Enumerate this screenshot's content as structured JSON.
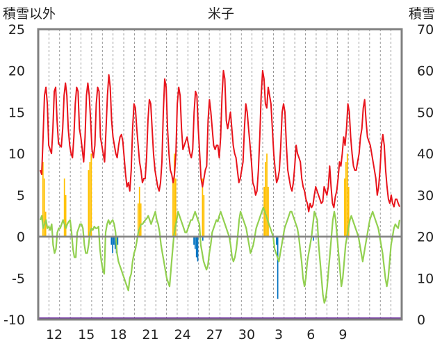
{
  "title": "米子",
  "left_axis_title": "積雪以外",
  "right_axis_title": "積雪",
  "chart_data": {
    "type": "line",
    "title": "米子",
    "x_tick_labels": [
      "12",
      "15",
      "18",
      "21",
      "24",
      "27",
      "30",
      "3",
      "6",
      "9"
    ],
    "y_left": {
      "label": "積雪以外",
      "ylim": [
        -10,
        25
      ],
      "ticks": [
        -10,
        -5,
        0,
        5,
        10,
        15,
        20,
        25
      ]
    },
    "y_right": {
      "label": "積雪",
      "ylim": [
        0,
        70
      ],
      "ticks": [
        0,
        10,
        20,
        30,
        40,
        50,
        60,
        70
      ]
    },
    "grid": {
      "vertical": "dashed",
      "horizontal": false
    },
    "colors": {
      "red": "#e8141c",
      "green": "#92d050",
      "orange": "#ffc000",
      "blue": "#0070c0",
      "purple": "#7030a0",
      "frame": "#808080",
      "zero": "#808080"
    },
    "n_days": 34,
    "series": [
      {
        "axis": "left",
        "color": "red",
        "values": [
          8,
          7.5,
          12,
          17,
          18,
          16,
          11,
          10.5,
          10,
          13,
          17.5,
          18,
          14,
          11.2,
          11,
          10.8,
          13,
          17,
          18.5,
          17,
          13,
          11,
          10,
          9.5,
          12,
          16,
          18,
          17.5,
          13,
          12,
          10.5,
          9,
          12,
          17,
          18.5,
          17,
          14,
          10.5,
          9.5,
          11,
          16,
          18,
          17.5,
          12,
          11,
          10,
          9,
          13,
          17,
          19.5,
          18,
          14,
          12,
          11,
          10,
          9.5,
          11,
          12,
          12.3,
          11.5,
          9.5,
          7.5,
          6,
          6.5,
          5.5,
          8,
          13,
          16,
          15.5,
          13,
          11,
          9,
          8,
          6.5,
          7,
          7,
          9.5,
          14,
          16.5,
          16,
          13,
          10,
          8,
          7,
          6,
          5.5,
          6.5,
          9,
          15,
          19,
          18,
          13,
          10,
          8,
          7.5,
          6.5,
          7.5,
          10,
          16,
          18,
          17,
          13,
          10.5,
          11,
          11.5,
          12,
          11,
          10,
          9.5,
          10.5,
          15,
          17.5,
          17,
          13,
          10,
          7,
          6,
          7,
          8,
          8.5,
          14,
          16.5,
          15,
          13,
          11,
          10.5,
          11,
          11,
          9.5,
          12,
          17,
          20,
          19,
          14,
          13,
          14,
          15,
          13,
          11,
          10,
          9.5,
          8,
          6.5,
          7,
          8,
          9,
          13,
          16,
          15,
          13,
          11,
          9,
          6.5,
          6,
          5,
          5.5,
          8,
          12,
          17,
          20,
          19,
          16,
          15.5,
          18,
          17,
          16,
          13,
          10,
          8,
          6.5,
          7,
          8,
          11,
          15,
          16,
          15,
          11,
          8,
          7,
          6,
          5.5,
          6.5,
          8.5,
          11,
          10,
          9.5,
          9,
          7,
          6,
          5.5,
          4.5,
          4,
          3,
          4,
          3.5,
          3.8,
          5,
          6,
          5.5,
          5,
          4.5,
          4,
          4.2,
          6,
          5.5,
          5,
          6,
          8.5,
          6,
          4,
          3.5,
          4.8,
          5.5,
          7,
          9,
          8.5,
          10,
          12,
          11,
          13,
          16,
          15,
          12,
          10,
          8.5,
          8,
          8,
          9,
          10,
          12,
          13,
          15.5,
          16.5,
          14,
          12,
          11.5,
          11,
          10,
          9,
          8,
          7,
          5,
          6,
          8,
          11,
          12.3,
          11,
          8,
          6,
          4.5,
          4,
          5,
          4,
          3.6,
          4.5,
          4.5,
          4,
          3.6
        ]
      },
      {
        "axis": "left",
        "color": "green",
        "values": [
          2,
          2.5,
          1,
          1.5,
          2,
          1,
          1.2,
          0.8,
          1.5,
          -1,
          -2,
          -1.5,
          0.5,
          1,
          1,
          1.5,
          2,
          1.5,
          1,
          1.5,
          1.8,
          2,
          0.5,
          -1.5,
          -2.5,
          -2.5,
          0.5,
          1,
          1.5,
          1.5,
          1,
          -1,
          -2,
          -2,
          -1,
          0.5,
          1,
          0.8,
          1.2,
          1,
          1,
          1.2,
          -1.5,
          -3,
          -4,
          -4.5,
          0.5,
          1.5,
          2,
          1.5,
          1.8,
          2,
          1.5,
          0.5,
          -2,
          -3,
          -3.5,
          -4,
          -4.5,
          -5,
          -5.5,
          -6,
          -6.5,
          -5,
          -4.5,
          -3,
          -2,
          -1.5,
          -0.5,
          0.5,
          1,
          1.5,
          1.5,
          1.8,
          2,
          2.2,
          2.5,
          2,
          1.5,
          2,
          2.5,
          3,
          2,
          1.5,
          0.5,
          -1,
          -2,
          -3,
          -4,
          -5,
          -5.5,
          -6,
          -4,
          -2,
          0,
          1,
          2,
          3,
          2.5,
          2,
          1.5,
          1,
          0.5,
          0.5,
          1,
          1.5,
          2,
          2,
          2.5,
          3,
          2.5,
          2,
          1.5,
          -1,
          -2,
          -3,
          -3.5,
          -4,
          -3.5,
          -2,
          -1,
          0.5,
          1,
          1.5,
          2,
          1.8,
          2.5,
          3,
          2.5,
          2,
          1.5,
          1,
          0.5,
          0,
          -1,
          -2.5,
          -3,
          -2.5,
          -1.5,
          0,
          2,
          3,
          2.5,
          2,
          1.5,
          1,
          0,
          -1,
          -2,
          -1.5,
          -1,
          0,
          1,
          1.5,
          2,
          2.5,
          3,
          3.5,
          3,
          2.5,
          2,
          1.5,
          1,
          0.5,
          0,
          -1.5,
          -2,
          -2.5,
          -3,
          -2,
          -1,
          0,
          1,
          1.5,
          2,
          2.5,
          3,
          3,
          2.5,
          2,
          1.5,
          1,
          0,
          -1.5,
          -3,
          -5,
          -6,
          -5,
          -3,
          -2,
          -1,
          0,
          1.5,
          3,
          2.5,
          2,
          -1,
          -3,
          -5,
          -7,
          -8,
          -7.5,
          -6,
          -4,
          -2,
          0,
          2,
          3,
          2,
          0,
          -2,
          -4,
          -6,
          -5,
          -3,
          -1,
          0,
          1,
          2,
          2.5,
          2,
          1.5,
          1,
          0.5,
          0,
          -1,
          -2,
          -3,
          -2,
          -1,
          0,
          1,
          2,
          2.5,
          3,
          2.5,
          2,
          1.5,
          1,
          0,
          -1,
          -2,
          -3.5,
          -5,
          -6,
          -5,
          -3,
          -1,
          0,
          1,
          1.5,
          1.2,
          1,
          2
        ]
      },
      {
        "axis": "left",
        "color": "orange",
        "style": "bars",
        "values": [
          0,
          0,
          9,
          7,
          3,
          0,
          0,
          0,
          0,
          0,
          0,
          0,
          0,
          0,
          0,
          0,
          0,
          0,
          7,
          5,
          0,
          0,
          0,
          0,
          0,
          0,
          0,
          0,
          0,
          0,
          0,
          0,
          0,
          0,
          0,
          0,
          8,
          9,
          10,
          0,
          0,
          0,
          0,
          0,
          0,
          0,
          0,
          0,
          0,
          0,
          0,
          0,
          0,
          0,
          0,
          0,
          0,
          0,
          0,
          0,
          0,
          0,
          0,
          0,
          0,
          0,
          0,
          0,
          0,
          0,
          0,
          0,
          0,
          4,
          6,
          4,
          0,
          0,
          0,
          0,
          0,
          0,
          0,
          0,
          0,
          0,
          0,
          0,
          0,
          0,
          0,
          0,
          0,
          0,
          0,
          0,
          0,
          0,
          0,
          7,
          10,
          7,
          0,
          0,
          0,
          0,
          0,
          0,
          0,
          0,
          0,
          0,
          0,
          0,
          0,
          0,
          0,
          0,
          0,
          0,
          0,
          7,
          5,
          0,
          0,
          0,
          0,
          0,
          0,
          0,
          0,
          0,
          0,
          0,
          0,
          0,
          0,
          0,
          0,
          0,
          0,
          0,
          0,
          0,
          0,
          0,
          0,
          0,
          0,
          0,
          0,
          0,
          0,
          0,
          0,
          0,
          0,
          0,
          0,
          0,
          0,
          0,
          0,
          0,
          0,
          0,
          0,
          6,
          9,
          10,
          6,
          0,
          0,
          0,
          0,
          0,
          0,
          0,
          0,
          0,
          0,
          0,
          0,
          0,
          0,
          0,
          0,
          0,
          0,
          0,
          0,
          0,
          0,
          0,
          0,
          0,
          0,
          0,
          0,
          0,
          0,
          0,
          0,
          0,
          0,
          0,
          0,
          0,
          0,
          0,
          0,
          0,
          0,
          0,
          0,
          0,
          0,
          0,
          0,
          0,
          0,
          0,
          0,
          0,
          0,
          0,
          0,
          7,
          9,
          10,
          6,
          0,
          0,
          0,
          0,
          0,
          0,
          0,
          0,
          0,
          0,
          0,
          0,
          0,
          0,
          0,
          0,
          0,
          0,
          0,
          0,
          0,
          0,
          0,
          0,
          0,
          0,
          0,
          0,
          0,
          0,
          0,
          0,
          0,
          0,
          0,
          0,
          0,
          0
        ]
      },
      {
        "axis": "left",
        "color": "blue",
        "style": "bars",
        "values": [
          0,
          0,
          0,
          0,
          0,
          0,
          0,
          0,
          0,
          0,
          0,
          0,
          0,
          0,
          0,
          0,
          0,
          0,
          0,
          0,
          0,
          0,
          0,
          0,
          0,
          0,
          0,
          0,
          0,
          0,
          0,
          0,
          0,
          0,
          0,
          0,
          0,
          0,
          0,
          0,
          0,
          0,
          0,
          0,
          0,
          0,
          0,
          0,
          0,
          0,
          0,
          0,
          0,
          0,
          0,
          0,
          -1,
          -2,
          -1,
          -1.5,
          -2,
          -1,
          0,
          0,
          0,
          0,
          0,
          0,
          0,
          0,
          0,
          0,
          0,
          0,
          0,
          0,
          0,
          0,
          0,
          0,
          0,
          0,
          0,
          0,
          0,
          0,
          0,
          0,
          0,
          0,
          0,
          0,
          0,
          0,
          0,
          0,
          0,
          0,
          0,
          0,
          0,
          0,
          0,
          0,
          0,
          0,
          0,
          0,
          0,
          0,
          0,
          0,
          0,
          0,
          0,
          0,
          0,
          0,
          0,
          0,
          0,
          -1,
          -1.5,
          -2.5,
          -3,
          0,
          0,
          0,
          -0.5,
          0,
          0,
          0,
          0,
          0,
          0,
          0,
          0,
          0,
          0,
          0,
          0,
          0,
          0,
          0,
          0,
          0,
          0,
          0,
          0,
          0,
          0,
          0,
          0,
          0,
          0,
          0,
          0,
          0,
          0,
          0,
          0,
          0,
          0,
          0,
          0,
          0,
          0,
          0,
          0,
          0,
          0,
          0,
          0,
          0,
          0,
          0,
          0,
          0,
          0,
          0,
          0,
          0,
          0,
          0,
          0,
          0,
          -1,
          -7.5,
          0,
          0,
          0,
          0,
          0,
          0,
          0,
          0,
          0,
          0,
          0,
          0,
          0,
          0,
          0,
          0,
          0,
          0,
          0,
          0,
          0,
          0,
          0,
          0,
          0,
          0,
          0,
          -0.5,
          0,
          0,
          0,
          0,
          0,
          0,
          0,
          0,
          0,
          0,
          0,
          0,
          0,
          0,
          0,
          0,
          0,
          0,
          0,
          0,
          0,
          0,
          0,
          0,
          0,
          0,
          0,
          0,
          0,
          0,
          0,
          0,
          0,
          0,
          0,
          0,
          0,
          0,
          0,
          0,
          0,
          0,
          0,
          0,
          0,
          0,
          0,
          0,
          0,
          0,
          0,
          0,
          0,
          0,
          0,
          0,
          0,
          0,
          0,
          0,
          0,
          0,
          0,
          0,
          0,
          0,
          0,
          0
        ]
      },
      {
        "axis": "right",
        "color": "purple",
        "constant": 0
      }
    ]
  }
}
